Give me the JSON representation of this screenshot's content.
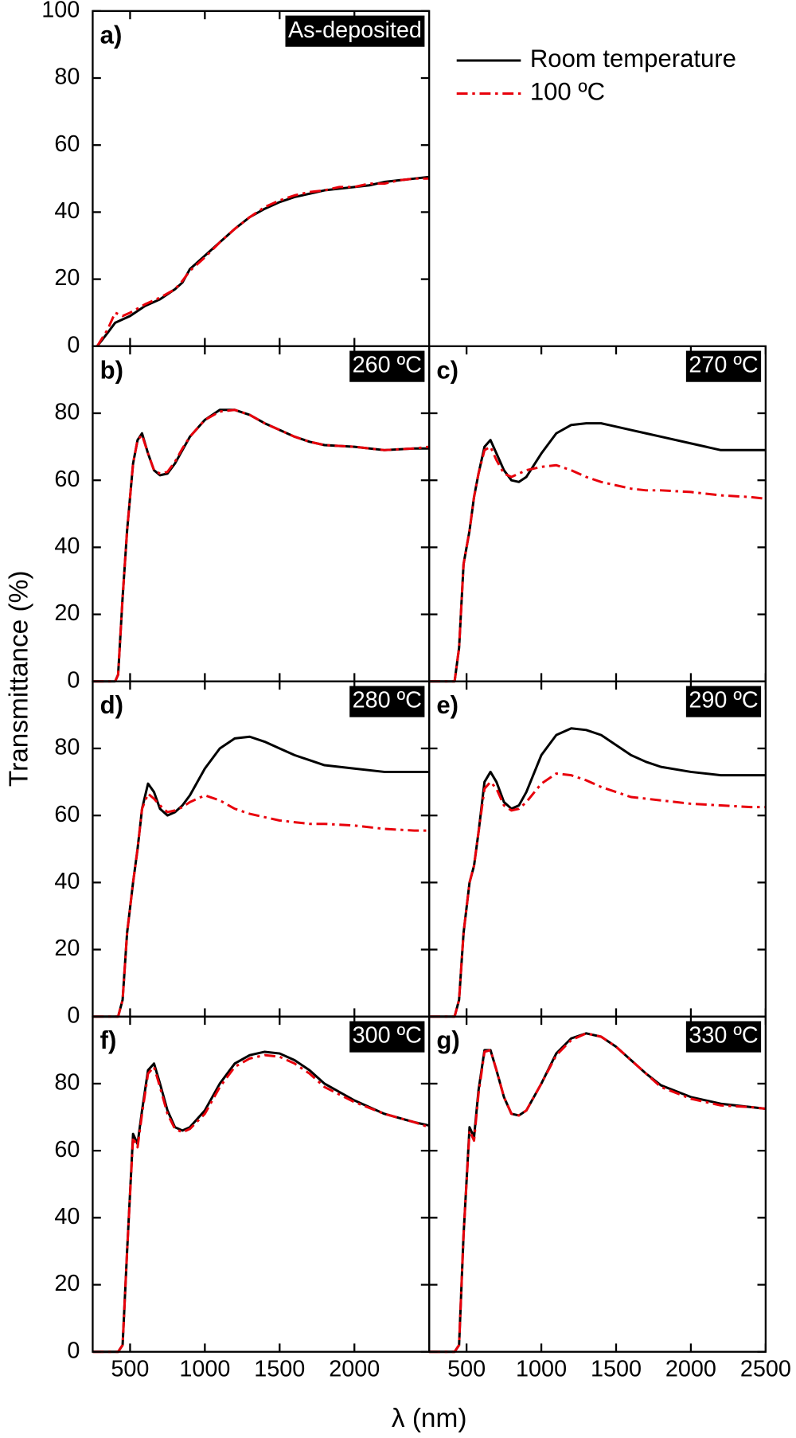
{
  "y_label": "Transmittance (%)",
  "x_label": "λ (nm)",
  "chart_data": [
    {
      "type": "line",
      "panel": "a)",
      "tag": "As-deposited",
      "xlim": [
        250,
        2500
      ],
      "ylim": [
        0,
        100
      ],
      "xticks": [
        500,
        1000,
        1500,
        2000
      ],
      "yticks": [
        0,
        20,
        40,
        60,
        80,
        100
      ],
      "x": [
        280,
        350,
        400,
        450,
        500,
        600,
        700,
        800,
        850,
        900,
        1000,
        1100,
        1200,
        1300,
        1400,
        1500,
        1600,
        1700,
        1800,
        1900,
        2000,
        2100,
        2200,
        2300,
        2400,
        2500
      ],
      "series": [
        {
          "name": "Room temperature",
          "color": "#000000",
          "linestyle": "solid",
          "values": [
            0,
            4,
            7,
            8,
            9,
            12,
            14,
            17,
            19,
            23,
            27,
            31,
            35,
            38.5,
            41,
            43,
            44.5,
            45.5,
            46.5,
            47,
            47.5,
            48,
            49,
            49.5,
            50,
            50.5
          ]
        },
        {
          "name": "100 ºC",
          "color": "#e8000b",
          "linestyle": "dashdot",
          "values": [
            0,
            5,
            10,
            9,
            10,
            12.5,
            14.5,
            17,
            19.5,
            22.5,
            26.5,
            31,
            35,
            38.5,
            41.5,
            43.5,
            45,
            46,
            46.5,
            47.5,
            47.5,
            48.5,
            48.5,
            49.5,
            50,
            50
          ]
        }
      ]
    },
    {
      "type": "line",
      "panel": "b)",
      "tag": "260 ºC",
      "xlim": [
        250,
        2500
      ],
      "ylim": [
        0,
        100
      ],
      "xticks": [
        500,
        1000,
        1500,
        2000
      ],
      "yticks": [
        0,
        20,
        40,
        60,
        80
      ],
      "x": [
        250,
        350,
        400,
        420,
        450,
        480,
        520,
        550,
        580,
        620,
        660,
        700,
        750,
        800,
        850,
        900,
        1000,
        1100,
        1200,
        1300,
        1400,
        1500,
        1600,
        1700,
        1800,
        2000,
        2200,
        2400,
        2500
      ],
      "series": [
        {
          "color": "#000000",
          "linestyle": "solid",
          "values": [
            0,
            0,
            0,
            2,
            25,
            45,
            65,
            72,
            74,
            68,
            63,
            61.5,
            62,
            65,
            69,
            73,
            78,
            81,
            81,
            79.5,
            77,
            75,
            73,
            71.5,
            70.5,
            70,
            69,
            69.5,
            69.5
          ]
        },
        {
          "color": "#e8000b",
          "linestyle": "dashdot",
          "values": [
            0,
            0,
            0,
            2,
            25,
            45,
            65,
            72,
            73.5,
            68,
            63,
            62,
            62.5,
            65.5,
            69.5,
            73,
            78,
            80.5,
            81,
            79.5,
            77,
            75,
            73,
            71.5,
            70.5,
            70,
            69,
            69.5,
            70
          ]
        }
      ]
    },
    {
      "type": "line",
      "panel": "c)",
      "tag": "270 ºC",
      "xlim": [
        250,
        2500
      ],
      "ylim": [
        0,
        100
      ],
      "xticks": [
        500,
        1000,
        1500,
        2000,
        2500
      ],
      "yticks": [
        0,
        20,
        40,
        60,
        80
      ],
      "x": [
        250,
        350,
        400,
        420,
        450,
        480,
        520,
        550,
        580,
        620,
        660,
        700,
        750,
        800,
        850,
        900,
        1000,
        1100,
        1200,
        1300,
        1400,
        1500,
        1600,
        1700,
        1800,
        2000,
        2200,
        2400,
        2500
      ],
      "series": [
        {
          "color": "#000000",
          "linestyle": "solid",
          "values": [
            0,
            0,
            0,
            0,
            10,
            35,
            45,
            55,
            62,
            70,
            72,
            68,
            63,
            60,
            59.5,
            61,
            68,
            74,
            76.5,
            77,
            77,
            76,
            75,
            74,
            73,
            71,
            69,
            69,
            69
          ]
        },
        {
          "color": "#e8000b",
          "linestyle": "dashdot",
          "values": [
            0,
            0,
            0,
            0,
            10,
            35,
            45,
            55,
            62,
            69,
            70,
            66,
            62,
            61,
            62,
            63,
            64,
            64.5,
            63,
            61,
            59.5,
            58.5,
            57.5,
            57,
            57,
            56.5,
            55.5,
            55,
            54.5
          ]
        }
      ]
    },
    {
      "type": "line",
      "panel": "d)",
      "tag": "280 ºC",
      "xlim": [
        250,
        2500
      ],
      "ylim": [
        0,
        100
      ],
      "xticks": [
        500,
        1000,
        1500,
        2000
      ],
      "yticks": [
        0,
        20,
        40,
        60,
        80
      ],
      "x": [
        250,
        350,
        400,
        420,
        450,
        480,
        520,
        550,
        580,
        620,
        660,
        700,
        750,
        800,
        850,
        900,
        1000,
        1100,
        1200,
        1300,
        1400,
        1500,
        1600,
        1700,
        1800,
        2000,
        2200,
        2400,
        2500
      ],
      "series": [
        {
          "color": "#000000",
          "linestyle": "solid",
          "values": [
            0,
            0,
            0,
            0,
            5,
            25,
            40,
            50,
            62,
            69.5,
            67,
            62,
            60,
            61,
            63,
            66,
            74,
            80,
            83,
            83.5,
            82,
            80,
            78,
            76.5,
            75,
            74,
            73,
            73,
            73
          ]
        },
        {
          "color": "#e8000b",
          "linestyle": "dashdot",
          "values": [
            0,
            0,
            0,
            0,
            5,
            25,
            40,
            50,
            62,
            66.5,
            65,
            63,
            61,
            61.5,
            62.5,
            64,
            66,
            64.5,
            62,
            60.5,
            59.5,
            58.5,
            58,
            57.5,
            57.5,
            57,
            56,
            55.5,
            55.5
          ]
        }
      ]
    },
    {
      "type": "line",
      "panel": "e)",
      "tag": "290 ºC",
      "xlim": [
        250,
        2500
      ],
      "ylim": [
        0,
        100
      ],
      "xticks": [
        500,
        1000,
        1500,
        2000,
        2500
      ],
      "yticks": [
        0,
        20,
        40,
        60,
        80
      ],
      "x": [
        250,
        350,
        400,
        420,
        450,
        480,
        520,
        550,
        580,
        620,
        660,
        700,
        750,
        800,
        850,
        900,
        1000,
        1100,
        1200,
        1300,
        1400,
        1500,
        1600,
        1700,
        1800,
        2000,
        2200,
        2400,
        2500
      ],
      "series": [
        {
          "color": "#000000",
          "linestyle": "solid",
          "values": [
            0,
            0,
            0,
            0,
            5,
            25,
            40,
            45,
            55,
            70,
            73,
            70,
            64,
            62,
            63,
            67,
            78,
            84,
            86,
            85.5,
            84,
            81,
            78,
            76,
            74.5,
            73,
            72,
            72,
            72
          ]
        },
        {
          "color": "#e8000b",
          "linestyle": "dashdot",
          "values": [
            0,
            0,
            0,
            0,
            5,
            25,
            40,
            45,
            55,
            68,
            70,
            68,
            63,
            61.5,
            62,
            64,
            69.5,
            72.5,
            72,
            70.5,
            68.5,
            67,
            65.5,
            65,
            64.5,
            63.5,
            63,
            62.5,
            62.5
          ]
        }
      ]
    },
    {
      "type": "line",
      "panel": "f)",
      "tag": "300 ºC",
      "xlim": [
        250,
        2500
      ],
      "ylim": [
        0,
        100
      ],
      "xticks": [
        500,
        1000,
        1500,
        2000
      ],
      "yticks": [
        0,
        20,
        40,
        60,
        80
      ],
      "x": [
        250,
        350,
        400,
        420,
        450,
        480,
        520,
        550,
        580,
        620,
        660,
        700,
        750,
        800,
        850,
        900,
        1000,
        1100,
        1200,
        1300,
        1400,
        1500,
        1600,
        1700,
        1800,
        2000,
        2200,
        2400,
        2500
      ],
      "series": [
        {
          "color": "#000000",
          "linestyle": "solid",
          "values": [
            0,
            0,
            0,
            0,
            2,
            30,
            65,
            62,
            72,
            84,
            86,
            80,
            72,
            67,
            66,
            67,
            72,
            80,
            86,
            88.5,
            89.5,
            89,
            87,
            84,
            80,
            75,
            71,
            68.5,
            67.5
          ]
        },
        {
          "color": "#e8000b",
          "linestyle": "dashdot",
          "values": [
            0,
            0,
            0,
            0,
            2,
            30,
            64,
            61,
            71,
            83,
            85,
            79,
            71,
            66.5,
            65.5,
            66.5,
            71,
            79,
            85,
            87.5,
            88.5,
            88,
            86,
            83,
            79,
            74.5,
            71,
            68.5,
            67
          ]
        }
      ]
    },
    {
      "type": "line",
      "panel": "g)",
      "tag": "330 ºC",
      "xlim": [
        250,
        2500
      ],
      "ylim": [
        0,
        100
      ],
      "xticks": [
        500,
        1000,
        1500,
        2000,
        2500
      ],
      "yticks": [
        0,
        20,
        40,
        60,
        80
      ],
      "x": [
        250,
        350,
        400,
        420,
        450,
        480,
        520,
        550,
        580,
        620,
        660,
        700,
        750,
        800,
        850,
        900,
        1000,
        1100,
        1200,
        1300,
        1400,
        1500,
        1600,
        1700,
        1800,
        2000,
        2200,
        2400,
        2500
      ],
      "series": [
        {
          "color": "#000000",
          "linestyle": "solid",
          "values": [
            0,
            0,
            0,
            0,
            2,
            35,
            67,
            64,
            78,
            90,
            90,
            84,
            76,
            71,
            70.5,
            72,
            80,
            89,
            93.5,
            95,
            94,
            91,
            87,
            83,
            79.5,
            76,
            74,
            73,
            72.5
          ]
        },
        {
          "color": "#e8000b",
          "linestyle": "dashdot",
          "values": [
            0,
            0,
            0,
            0,
            2,
            35,
            66,
            63,
            77,
            89.5,
            90,
            84,
            76,
            71,
            70.5,
            72,
            80,
            88.5,
            93,
            95,
            94,
            91,
            87,
            83,
            79,
            75.5,
            73.5,
            73,
            72.5
          ]
        }
      ]
    }
  ]
}
